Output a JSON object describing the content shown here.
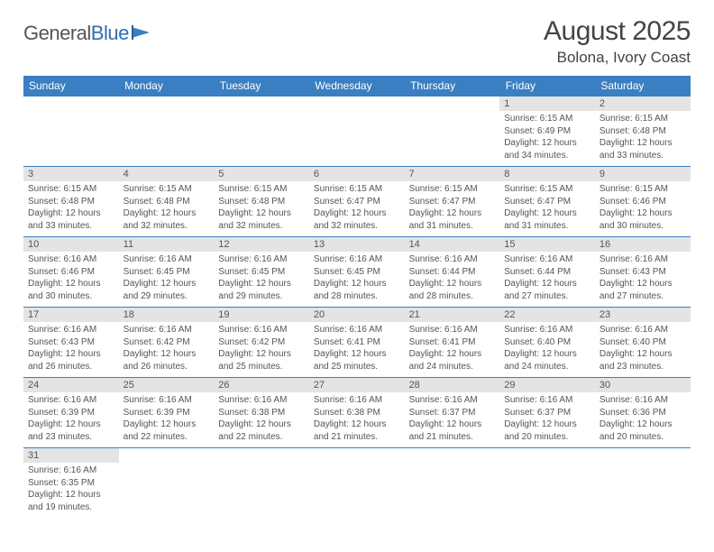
{
  "logo": {
    "general": "General",
    "blue": "Blue"
  },
  "title": {
    "month": "August 2025",
    "location": "Bolona, Ivory Coast"
  },
  "colors": {
    "header_bg": "#3a7fc1",
    "header_text": "#ffffff",
    "daynum_bg": "#e4e4e4",
    "border": "#3a7fc1"
  },
  "weekdays": [
    "Sunday",
    "Monday",
    "Tuesday",
    "Wednesday",
    "Thursday",
    "Friday",
    "Saturday"
  ],
  "weeks": [
    [
      null,
      null,
      null,
      null,
      null,
      {
        "n": "1",
        "sr": "Sunrise: 6:15 AM",
        "ss": "Sunset: 6:49 PM",
        "d1": "Daylight: 12 hours",
        "d2": "and 34 minutes."
      },
      {
        "n": "2",
        "sr": "Sunrise: 6:15 AM",
        "ss": "Sunset: 6:48 PM",
        "d1": "Daylight: 12 hours",
        "d2": "and 33 minutes."
      }
    ],
    [
      {
        "n": "3",
        "sr": "Sunrise: 6:15 AM",
        "ss": "Sunset: 6:48 PM",
        "d1": "Daylight: 12 hours",
        "d2": "and 33 minutes."
      },
      {
        "n": "4",
        "sr": "Sunrise: 6:15 AM",
        "ss": "Sunset: 6:48 PM",
        "d1": "Daylight: 12 hours",
        "d2": "and 32 minutes."
      },
      {
        "n": "5",
        "sr": "Sunrise: 6:15 AM",
        "ss": "Sunset: 6:48 PM",
        "d1": "Daylight: 12 hours",
        "d2": "and 32 minutes."
      },
      {
        "n": "6",
        "sr": "Sunrise: 6:15 AM",
        "ss": "Sunset: 6:47 PM",
        "d1": "Daylight: 12 hours",
        "d2": "and 32 minutes."
      },
      {
        "n": "7",
        "sr": "Sunrise: 6:15 AM",
        "ss": "Sunset: 6:47 PM",
        "d1": "Daylight: 12 hours",
        "d2": "and 31 minutes."
      },
      {
        "n": "8",
        "sr": "Sunrise: 6:15 AM",
        "ss": "Sunset: 6:47 PM",
        "d1": "Daylight: 12 hours",
        "d2": "and 31 minutes."
      },
      {
        "n": "9",
        "sr": "Sunrise: 6:15 AM",
        "ss": "Sunset: 6:46 PM",
        "d1": "Daylight: 12 hours",
        "d2": "and 30 minutes."
      }
    ],
    [
      {
        "n": "10",
        "sr": "Sunrise: 6:16 AM",
        "ss": "Sunset: 6:46 PM",
        "d1": "Daylight: 12 hours",
        "d2": "and 30 minutes."
      },
      {
        "n": "11",
        "sr": "Sunrise: 6:16 AM",
        "ss": "Sunset: 6:45 PM",
        "d1": "Daylight: 12 hours",
        "d2": "and 29 minutes."
      },
      {
        "n": "12",
        "sr": "Sunrise: 6:16 AM",
        "ss": "Sunset: 6:45 PM",
        "d1": "Daylight: 12 hours",
        "d2": "and 29 minutes."
      },
      {
        "n": "13",
        "sr": "Sunrise: 6:16 AM",
        "ss": "Sunset: 6:45 PM",
        "d1": "Daylight: 12 hours",
        "d2": "and 28 minutes."
      },
      {
        "n": "14",
        "sr": "Sunrise: 6:16 AM",
        "ss": "Sunset: 6:44 PM",
        "d1": "Daylight: 12 hours",
        "d2": "and 28 minutes."
      },
      {
        "n": "15",
        "sr": "Sunrise: 6:16 AM",
        "ss": "Sunset: 6:44 PM",
        "d1": "Daylight: 12 hours",
        "d2": "and 27 minutes."
      },
      {
        "n": "16",
        "sr": "Sunrise: 6:16 AM",
        "ss": "Sunset: 6:43 PM",
        "d1": "Daylight: 12 hours",
        "d2": "and 27 minutes."
      }
    ],
    [
      {
        "n": "17",
        "sr": "Sunrise: 6:16 AM",
        "ss": "Sunset: 6:43 PM",
        "d1": "Daylight: 12 hours",
        "d2": "and 26 minutes."
      },
      {
        "n": "18",
        "sr": "Sunrise: 6:16 AM",
        "ss": "Sunset: 6:42 PM",
        "d1": "Daylight: 12 hours",
        "d2": "and 26 minutes."
      },
      {
        "n": "19",
        "sr": "Sunrise: 6:16 AM",
        "ss": "Sunset: 6:42 PM",
        "d1": "Daylight: 12 hours",
        "d2": "and 25 minutes."
      },
      {
        "n": "20",
        "sr": "Sunrise: 6:16 AM",
        "ss": "Sunset: 6:41 PM",
        "d1": "Daylight: 12 hours",
        "d2": "and 25 minutes."
      },
      {
        "n": "21",
        "sr": "Sunrise: 6:16 AM",
        "ss": "Sunset: 6:41 PM",
        "d1": "Daylight: 12 hours",
        "d2": "and 24 minutes."
      },
      {
        "n": "22",
        "sr": "Sunrise: 6:16 AM",
        "ss": "Sunset: 6:40 PM",
        "d1": "Daylight: 12 hours",
        "d2": "and 24 minutes."
      },
      {
        "n": "23",
        "sr": "Sunrise: 6:16 AM",
        "ss": "Sunset: 6:40 PM",
        "d1": "Daylight: 12 hours",
        "d2": "and 23 minutes."
      }
    ],
    [
      {
        "n": "24",
        "sr": "Sunrise: 6:16 AM",
        "ss": "Sunset: 6:39 PM",
        "d1": "Daylight: 12 hours",
        "d2": "and 23 minutes."
      },
      {
        "n": "25",
        "sr": "Sunrise: 6:16 AM",
        "ss": "Sunset: 6:39 PM",
        "d1": "Daylight: 12 hours",
        "d2": "and 22 minutes."
      },
      {
        "n": "26",
        "sr": "Sunrise: 6:16 AM",
        "ss": "Sunset: 6:38 PM",
        "d1": "Daylight: 12 hours",
        "d2": "and 22 minutes."
      },
      {
        "n": "27",
        "sr": "Sunrise: 6:16 AM",
        "ss": "Sunset: 6:38 PM",
        "d1": "Daylight: 12 hours",
        "d2": "and 21 minutes."
      },
      {
        "n": "28",
        "sr": "Sunrise: 6:16 AM",
        "ss": "Sunset: 6:37 PM",
        "d1": "Daylight: 12 hours",
        "d2": "and 21 minutes."
      },
      {
        "n": "29",
        "sr": "Sunrise: 6:16 AM",
        "ss": "Sunset: 6:37 PM",
        "d1": "Daylight: 12 hours",
        "d2": "and 20 minutes."
      },
      {
        "n": "30",
        "sr": "Sunrise: 6:16 AM",
        "ss": "Sunset: 6:36 PM",
        "d1": "Daylight: 12 hours",
        "d2": "and 20 minutes."
      }
    ],
    [
      {
        "n": "31",
        "sr": "Sunrise: 6:16 AM",
        "ss": "Sunset: 6:35 PM",
        "d1": "Daylight: 12 hours",
        "d2": "and 19 minutes."
      },
      null,
      null,
      null,
      null,
      null,
      null
    ]
  ]
}
